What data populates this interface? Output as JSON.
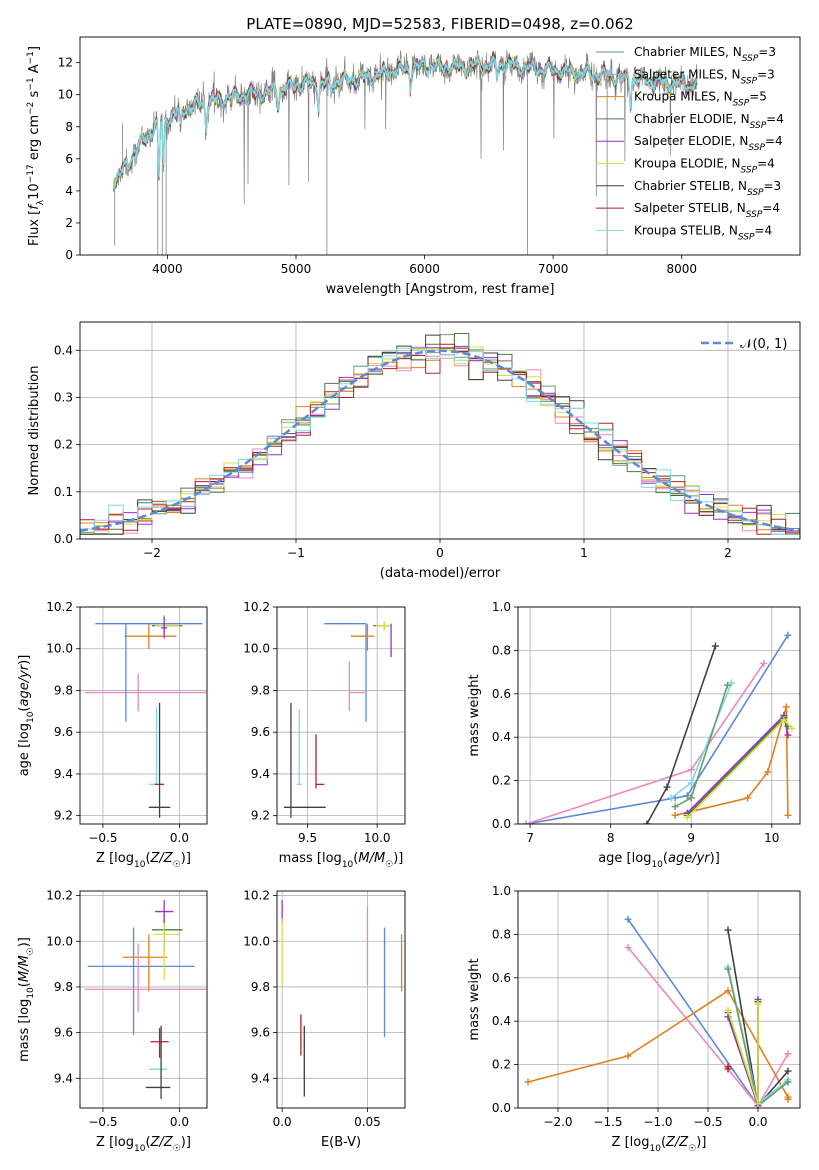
{
  "figure_title": "PLATE=0890, MJD=52583, FIBERID=0498, z=0.062",
  "colors": {
    "Chabrier MILES": "#6a9e6a",
    "Salpeter MILES": "#e78ac3",
    "Kroupa MILES": "#e08020",
    "Chabrier ELODIE": "#4a7a4a",
    "Salpeter ELODIE": "#9b30c8",
    "Kroupa ELODIE": "#d8e040",
    "Chabrier STELIB": "#404040",
    "Salpeter STELIB": "#b22222",
    "Kroupa STELIB": "#80d8e0",
    "gauss": "#5b8ad8",
    "gray": "#808080",
    "grid": "#b0b0b0"
  },
  "chart_data": [
    {
      "type": "line",
      "title": "PLATE=0890, MJD=52583, FIBERID=0498, z=0.062",
      "xlabel": "wavelength [Angstrom, rest frame]",
      "ylabel": "Flux [f_λ 10^-17 erg cm^-2 s^-1 A^-1]",
      "xlim": [
        3320,
        8920
      ],
      "ylim": [
        0,
        13.6
      ],
      "xticks": [
        4000,
        5000,
        6000,
        7000,
        8000
      ],
      "yticks": [
        0,
        2,
        4,
        6,
        8,
        10,
        12
      ],
      "grid": false,
      "legend_position": "right",
      "continuum_points": [
        [
          3600,
          4.6
        ],
        [
          3700,
          5.8
        ],
        [
          3800,
          7.0
        ],
        [
          3900,
          8.0
        ],
        [
          4000,
          8.6
        ],
        [
          4200,
          9.3
        ],
        [
          4400,
          9.7
        ],
        [
          4600,
          10.0
        ],
        [
          4800,
          10.2
        ],
        [
          5000,
          10.6
        ],
        [
          5200,
          10.7
        ],
        [
          5500,
          11.0
        ],
        [
          5800,
          11.5
        ],
        [
          6000,
          11.8
        ],
        [
          6300,
          11.7
        ],
        [
          6600,
          11.9
        ],
        [
          7000,
          11.5
        ],
        [
          7400,
          11.2
        ],
        [
          7800,
          10.8
        ],
        [
          8100,
          10.6
        ]
      ],
      "legend": [
        {
          "label": "Chabrier MILES",
          "nssp": "3"
        },
        {
          "label": "Salpeter MILES",
          "nssp": "3"
        },
        {
          "label": "Kroupa MILES",
          "nssp": "5"
        },
        {
          "label": "Chabrier ELODIE",
          "nssp": "4"
        },
        {
          "label": "Salpeter ELODIE",
          "nssp": "4"
        },
        {
          "label": "Kroupa ELODIE",
          "nssp": "4"
        },
        {
          "label": "Chabrier STELIB",
          "nssp": "3"
        },
        {
          "label": "Salpeter STELIB",
          "nssp": "4"
        },
        {
          "label": "Kroupa STELIB",
          "nssp": "4"
        }
      ]
    },
    {
      "type": "bar",
      "xlabel": "(data-model)/error",
      "ylabel": "Normed distribution",
      "xlim": [
        -2.5,
        2.5
      ],
      "ylim": [
        0,
        0.46
      ],
      "xticks": [
        -2,
        -1,
        0,
        1,
        2
      ],
      "yticks": [
        0.0,
        0.1,
        0.2,
        0.3,
        0.4
      ],
      "grid": true,
      "legend_position": "top-right",
      "gauss_label": "N(0,1)",
      "bin_width": 0.1,
      "histogram": "step outlines per model, following a standard normal distribution"
    },
    {
      "type": "scatter",
      "xlabel": "Z [log10(Z/Z☉)]",
      "ylabel": "age  [log10(age/yr)]",
      "xlim": [
        -0.65,
        0.18
      ],
      "ylim": [
        9.16,
        10.2
      ],
      "xticks": [
        -0.5,
        0.0
      ],
      "yticks": [
        9.2,
        9.4,
        9.6,
        9.8,
        10.0,
        10.2
      ],
      "grid": true,
      "points": [
        {
          "model": "Kroupa MILES",
          "x": -0.2,
          "y": 10.06,
          "xerr": [
            0.16,
            0.18
          ],
          "yerr": [
            0.06,
            0.06
          ]
        },
        {
          "model": "Chabrier MILES",
          "x": -0.1,
          "y": 10.12,
          "xerr": [
            0.12,
            0.1
          ],
          "yerr": [
            0.04,
            0.04
          ]
        },
        {
          "model": "Salpeter MILES",
          "x": -0.27,
          "y": 9.79,
          "xerr": [
            0.35,
            0.45
          ],
          "yerr": [
            0.09,
            0.09
          ]
        },
        {
          "model": "gauss",
          "x": -0.35,
          "y": 10.12,
          "xerr": [
            0.2,
            0.5
          ],
          "yerr": [
            0.47,
            0.0
          ]
        },
        {
          "model": "Chabrier ELODIE",
          "x": -0.1,
          "y": 10.11,
          "xerr": [
            0.08,
            0.12
          ],
          "yerr": [
            0.02,
            0.02
          ]
        },
        {
          "model": "Kroupa ELODIE",
          "x": -0.1,
          "y": 10.11,
          "xerr": [
            0.06,
            0.1
          ],
          "yerr": [
            0.02,
            0.02
          ]
        },
        {
          "model": "Salpeter ELODIE",
          "x": -0.1,
          "y": 10.1,
          "xerr": [
            0.02,
            0.02
          ],
          "yerr": [
            0.05,
            0.05
          ]
        },
        {
          "model": "Kroupa STELIB",
          "x": -0.15,
          "y": 9.35,
          "xerr": [
            0.05,
            0.05
          ],
          "yerr": [
            0.0,
            0.37
          ]
        },
        {
          "model": "Salpeter STELIB",
          "x": -0.13,
          "y": 9.35,
          "xerr": [
            0.03,
            0.03
          ],
          "yerr": [
            0.0,
            0.0
          ]
        },
        {
          "model": "Chabrier STELIB",
          "x": -0.13,
          "y": 9.24,
          "xerr": [
            0.07,
            0.07
          ],
          "yerr": [
            0.05,
            0.5
          ]
        }
      ]
    },
    {
      "type": "scatter",
      "xlabel": "mass [log10(M/M☉)]",
      "ylabel": "",
      "xlim": [
        9.28,
        10.2
      ],
      "ylim": [
        9.16,
        10.2
      ],
      "xticks": [
        9.5,
        10.0
      ],
      "yticks": [
        9.2,
        9.4,
        9.6,
        9.8,
        10.0,
        10.2
      ],
      "grid": true,
      "points": [
        {
          "model": "gauss",
          "x": 9.92,
          "y": 10.12,
          "xerr": [
            0.3,
            0.0
          ],
          "yerr": [
            0.47,
            0.0
          ]
        },
        {
          "model": "Kroupa MILES",
          "x": 9.93,
          "y": 10.06,
          "xerr": [
            0.12,
            0.05
          ],
          "yerr": [
            0.07,
            0.06
          ]
        },
        {
          "model": "Salpeter MILES",
          "x": 9.8,
          "y": 9.79,
          "xerr": [
            0.0,
            0.12
          ],
          "yerr": [
            0.09,
            0.15
          ]
        },
        {
          "model": "Chabrier ELODIE",
          "x": 10.05,
          "y": 10.11,
          "xerr": [
            0.08,
            0.04
          ],
          "yerr": [
            0.02,
            0.02
          ]
        },
        {
          "model": "Kroupa ELODIE",
          "x": 10.05,
          "y": 10.11,
          "xerr": [
            0.06,
            0.04
          ],
          "yerr": [
            0.02,
            0.02
          ]
        },
        {
          "model": "Salpeter ELODIE",
          "x": 10.1,
          "y": 10.06,
          "xerr": [
            0.0,
            0.0
          ],
          "yerr": [
            0.1,
            0.06
          ]
        },
        {
          "model": "Kroupa STELIB",
          "x": 9.44,
          "y": 9.35,
          "xerr": [
            0.02,
            0.02
          ],
          "yerr": [
            0.0,
            0.36
          ]
        },
        {
          "model": "Salpeter STELIB",
          "x": 9.56,
          "y": 9.35,
          "xerr": [
            0.0,
            0.06
          ],
          "yerr": [
            0.02,
            0.24
          ]
        },
        {
          "model": "Chabrier STELIB",
          "x": 9.38,
          "y": 9.24,
          "xerr": [
            0.05,
            0.25
          ],
          "yerr": [
            0.05,
            0.5
          ]
        }
      ]
    },
    {
      "type": "line",
      "xlabel": "age  [log10(age/yr)]",
      "ylabel": "mass weight",
      "xlim": [
        6.85,
        10.35
      ],
      "ylim": [
        0,
        1.0
      ],
      "xticks": [
        7,
        8,
        9,
        10
      ],
      "yticks": [
        0.0,
        0.2,
        0.4,
        0.6,
        0.8,
        1.0
      ],
      "grid": true,
      "series": [
        {
          "model": "gauss",
          "x": [
            6.95,
            8.8,
            8.95,
            10.2
          ],
          "y": [
            0.0,
            0.12,
            0.13,
            0.87
          ]
        },
        {
          "model": "Salpeter MILES",
          "x": [
            6.95,
            9.0,
            9.9
          ],
          "y": [
            0.0,
            0.25,
            0.74
          ]
        },
        {
          "model": "Kroupa MILES",
          "x": [
            8.8,
            9.7,
            9.95,
            10.18,
            10.2
          ],
          "y": [
            0.04,
            0.12,
            0.24,
            0.54,
            0.04
          ]
        },
        {
          "model": "Chabrier STELIB",
          "x": [
            8.45,
            8.7,
            9.3
          ],
          "y": [
            0.0,
            0.17,
            0.82
          ]
        },
        {
          "model": "Kroupa STELIB",
          "x": [
            8.75,
            9.0,
            9.5
          ],
          "y": [
            0.12,
            0.19,
            0.65
          ]
        },
        {
          "model": "Chabrier MILES",
          "x": [
            8.8,
            9.0,
            9.45
          ],
          "y": [
            0.08,
            0.12,
            0.64
          ]
        },
        {
          "model": "Salpeter ELODIE",
          "x": [
            8.95,
            10.15,
            10.2
          ],
          "y": [
            0.05,
            0.5,
            0.41
          ]
        },
        {
          "model": "Chabrier ELODIE",
          "x": [
            8.95,
            10.15,
            10.2
          ],
          "y": [
            0.04,
            0.49,
            0.45
          ]
        },
        {
          "model": "Kroupa ELODIE",
          "x": [
            8.95,
            10.15,
            10.25
          ],
          "y": [
            0.03,
            0.48,
            0.44
          ]
        }
      ]
    },
    {
      "type": "scatter",
      "xlabel": "Z [log10(Z/Z☉)]",
      "ylabel": "mass [log10(M/M☉)]",
      "xlim": [
        -0.65,
        0.18
      ],
      "ylim": [
        9.27,
        10.22
      ],
      "xticks": [
        -0.5,
        0.0
      ],
      "yticks": [
        9.4,
        9.6,
        9.8,
        10.0,
        10.2
      ],
      "grid": true,
      "points": [
        {
          "model": "gauss",
          "x": -0.3,
          "y": 9.89,
          "xerr": [
            0.3,
            0.4
          ],
          "yerr": [
            0.3,
            0.17
          ]
        },
        {
          "model": "Kroupa MILES",
          "x": -0.2,
          "y": 9.93,
          "xerr": [
            0.17,
            0.12
          ],
          "yerr": [
            0.15,
            0.1
          ]
        },
        {
          "model": "Salpeter MILES",
          "x": -0.27,
          "y": 9.79,
          "xerr": [
            0.35,
            0.45
          ],
          "yerr": [
            0.1,
            0.2
          ]
        },
        {
          "model": "Chabrier ELODIE",
          "x": -0.1,
          "y": 10.05,
          "xerr": [
            0.08,
            0.12
          ],
          "yerr": [
            0.1,
            0.04
          ]
        },
        {
          "model": "Kroupa ELODIE",
          "x": -0.1,
          "y": 10.03,
          "xerr": [
            0.07,
            0.1
          ],
          "yerr": [
            0.2,
            0.05
          ]
        },
        {
          "model": "Salpeter ELODIE",
          "x": -0.1,
          "y": 10.13,
          "xerr": [
            0.06,
            0.06
          ],
          "yerr": [
            0.05,
            0.05
          ]
        },
        {
          "model": "Salpeter STELIB",
          "x": -0.13,
          "y": 9.56,
          "xerr": [
            0.06,
            0.06
          ],
          "yerr": [
            0.07,
            0.06
          ]
        },
        {
          "model": "Kroupa STELIB",
          "x": -0.14,
          "y": 9.44,
          "xerr": [
            0.06,
            0.06
          ],
          "yerr": [
            0.0,
            0.0
          ]
        },
        {
          "model": "Chabrier STELIB",
          "x": -0.12,
          "y": 9.36,
          "xerr": [
            0.1,
            0.06
          ],
          "yerr": [
            0.05,
            0.27
          ]
        }
      ]
    },
    {
      "type": "scatter",
      "xlabel": "E(B-V)",
      "ylabel": "",
      "xlim": [
        -0.003,
        0.072
      ],
      "ylim": [
        9.27,
        10.22
      ],
      "xticks": [
        0.0,
        0.05
      ],
      "yticks": [
        9.4,
        9.6,
        9.8,
        10.0,
        10.2
      ],
      "grid": true,
      "points": [
        {
          "model": "Salpeter ELODIE",
          "x": 0.0,
          "y": 10.13,
          "yerr": [
            0.05,
            0.05
          ]
        },
        {
          "model": "Kroupa ELODIE",
          "x": 0.0,
          "y": 9.95,
          "yerr": [
            0.15,
            0.15
          ]
        },
        {
          "model": "Salpeter STELIB",
          "x": 0.011,
          "y": 9.59,
          "yerr": [
            0.09,
            0.09
          ]
        },
        {
          "model": "Kroupa STELIB",
          "x": 0.013,
          "y": 9.53,
          "yerr": [
            0.13,
            0.1
          ]
        },
        {
          "model": "Chabrier STELIB",
          "x": 0.013,
          "y": 9.47,
          "yerr": [
            0.15,
            0.16
          ]
        },
        {
          "model": "Salpeter MILES",
          "x": 0.05,
          "y": 9.98,
          "yerr": [
            0.17,
            0.17
          ]
        },
        {
          "model": "gauss",
          "x": 0.06,
          "y": 9.8,
          "yerr": [
            0.22,
            0.26
          ]
        },
        {
          "model": "Kroupa MILES",
          "x": 0.07,
          "y": 9.9,
          "yerr": [
            0.12,
            0.13
          ]
        }
      ]
    },
    {
      "type": "line",
      "xlabel": "Z [log10(Z/Z☉)]",
      "ylabel": "mass weight",
      "xlim": [
        -2.4,
        0.42
      ],
      "ylim": [
        0,
        1.0
      ],
      "xticks": [
        -2.0,
        -1.5,
        -1.0,
        -0.5,
        0.0
      ],
      "yticks": [
        0.0,
        0.2,
        0.4,
        0.6,
        0.8,
        1.0
      ],
      "grid": true,
      "series": [
        {
          "model": "gauss",
          "x": [
            -1.3,
            0.0,
            0.3
          ],
          "y": [
            0.87,
            0.01,
            0.12
          ]
        },
        {
          "model": "Salpeter MILES",
          "x": [
            -1.3,
            0.0,
            0.3
          ],
          "y": [
            0.74,
            0.01,
            0.25
          ]
        },
        {
          "model": "Kroupa MILES",
          "x": [
            -2.3,
            -1.3,
            -0.3,
            0.3,
            0.3
          ],
          "y": [
            0.12,
            0.24,
            0.54,
            0.05,
            0.04
          ]
        },
        {
          "model": "Chabrier STELIB",
          "x": [
            -0.3,
            0.0,
            0.3
          ],
          "y": [
            0.82,
            0.01,
            0.17
          ]
        },
        {
          "model": "Kroupa STELIB",
          "x": [
            -0.3,
            0.0,
            0.3
          ],
          "y": [
            0.65,
            0.02,
            0.13
          ]
        },
        {
          "model": "Chabrier MILES",
          "x": [
            -0.3,
            0.0,
            0.3
          ],
          "y": [
            0.64,
            0.01,
            0.12
          ]
        },
        {
          "model": "Salpeter ELODIE",
          "x": [
            -0.3,
            0.0,
            0.0
          ],
          "y": [
            0.42,
            0.01,
            0.5
          ]
        },
        {
          "model": "Chabrier ELODIE",
          "x": [
            -0.3,
            0.0,
            0.0
          ],
          "y": [
            0.44,
            0.02,
            0.49
          ]
        },
        {
          "model": "Kroupa ELODIE",
          "x": [
            -0.3,
            0.0,
            0.0
          ],
          "y": [
            0.45,
            0.02,
            0.48
          ]
        },
        {
          "model": "Salpeter STELIB",
          "x": [
            -0.3,
            -0.3
          ],
          "y": [
            0.18,
            0.19
          ]
        }
      ]
    }
  ]
}
